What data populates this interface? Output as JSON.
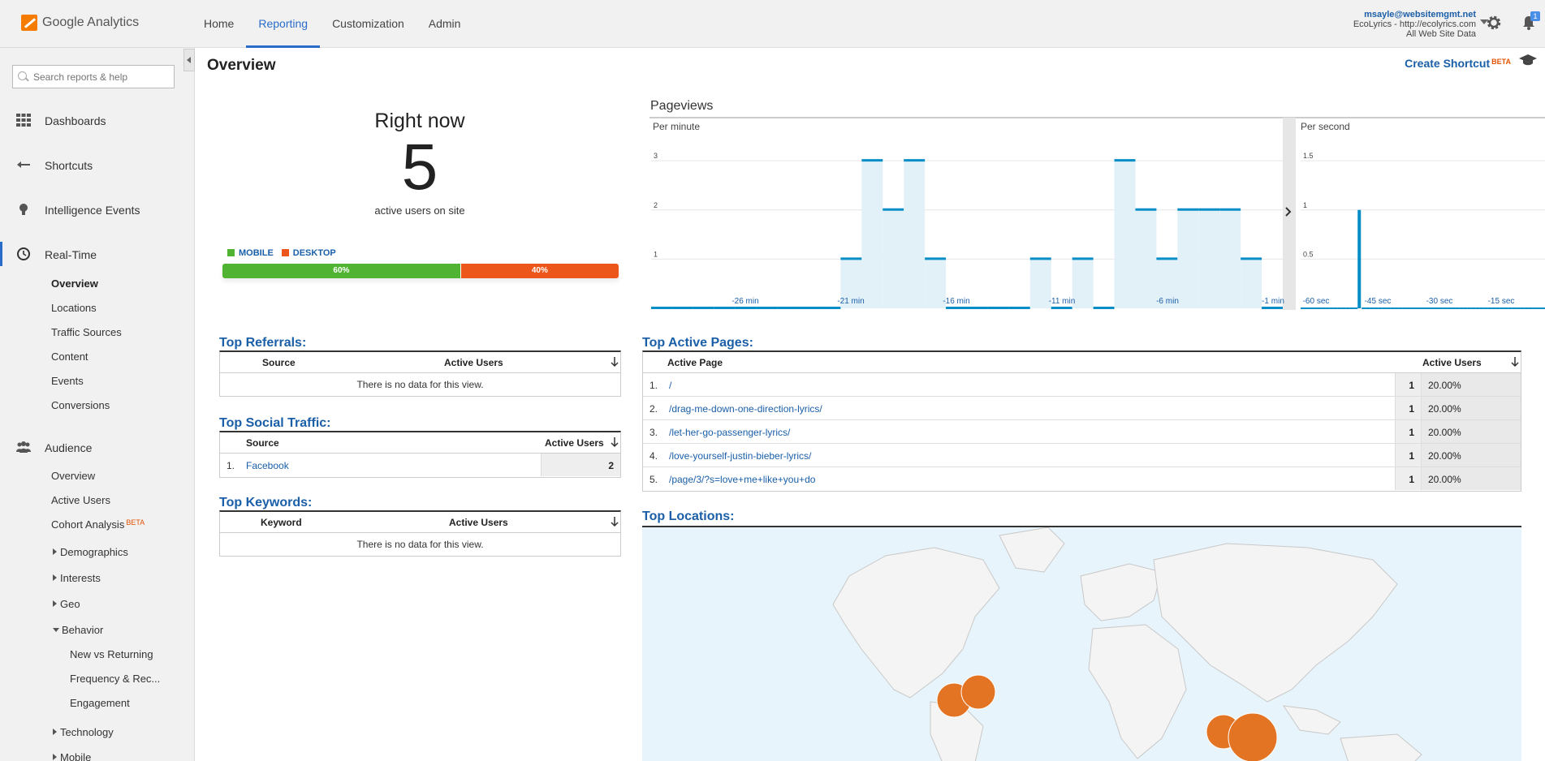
{
  "app": {
    "name": "Google Analytics"
  },
  "topnav": {
    "tabs": [
      {
        "label": "Home"
      },
      {
        "label": "Reporting"
      },
      {
        "label": "Customization"
      },
      {
        "label": "Admin"
      }
    ],
    "active": "Reporting"
  },
  "account": {
    "email": "msayle@websitemgmt.net",
    "property": "EcoLyrics - http://ecolyrics.com",
    "view": "All Web Site Data"
  },
  "notifications": {
    "count": "1"
  },
  "sidebar": {
    "search_placeholder": "Search reports & help",
    "sections": [
      {
        "label": "Dashboards"
      },
      {
        "label": "Shortcuts"
      },
      {
        "label": "Intelligence Events"
      },
      {
        "label": "Real-Time"
      },
      {
        "label": "Audience"
      }
    ],
    "realtime_items": [
      "Overview",
      "Locations",
      "Traffic Sources",
      "Content",
      "Events",
      "Conversions"
    ],
    "audience_items": [
      "Overview",
      "Active Users",
      "Cohort Analysis"
    ],
    "beta_label": "BETA",
    "audience_groups": [
      "Demographics",
      "Interests",
      "Geo",
      "Behavior"
    ],
    "behavior_items": [
      "New vs Returning",
      "Frequency & Rec...",
      "Engagement"
    ],
    "more_groups": [
      "Technology",
      "Mobile"
    ]
  },
  "main": {
    "title": "Overview",
    "create_shortcut": "Create Shortcut",
    "beta": "BETA",
    "right_now": {
      "heading": "Right now",
      "count": "5",
      "sub": "active users on site"
    },
    "devices": {
      "legend": [
        {
          "label": "MOBILE",
          "color": "#50b432"
        },
        {
          "label": "DESKTOP",
          "color": "#ed561b"
        }
      ],
      "mobile_pct": 60,
      "desktop_pct": 40,
      "mobile_label": "60%",
      "desktop_label": "40%"
    },
    "pageviews": {
      "title": "Pageviews",
      "per_minute": "Per minute",
      "per_second": "Per second"
    },
    "top_referrals": {
      "title": "Top Referrals:",
      "col_source": "Source",
      "col_users": "Active Users",
      "nodata": "There is no data for this view."
    },
    "top_social": {
      "title": "Top Social Traffic:",
      "col_source": "Source",
      "col_users": "Active Users",
      "rows": [
        {
          "num": "1.",
          "source": "Facebook",
          "users": "2"
        }
      ]
    },
    "top_keywords": {
      "title": "Top Keywords:",
      "col_keyword": "Keyword",
      "col_users": "Active Users",
      "nodata": "There is no data for this view."
    },
    "top_pages": {
      "title": "Top Active Pages:",
      "col_page": "Active Page",
      "col_users": "Active Users",
      "rows": [
        {
          "num": "1.",
          "page": "/",
          "users": "1",
          "pct": "20.00%"
        },
        {
          "num": "2.",
          "page": "/drag-me-down-one-direction-lyrics/",
          "users": "1",
          "pct": "20.00%"
        },
        {
          "num": "3.",
          "page": "/let-her-go-passenger-lyrics/",
          "users": "1",
          "pct": "20.00%"
        },
        {
          "num": "4.",
          "page": "/love-yourself-justin-bieber-lyrics/",
          "users": "1",
          "pct": "20.00%"
        },
        {
          "num": "5.",
          "page": "/page/3/?s=love+me+like+you+do",
          "users": "1",
          "pct": "20.00%"
        }
      ]
    },
    "top_locations": {
      "title": "Top Locations:"
    }
  },
  "chart_data": [
    {
      "type": "bar",
      "title": "Pageviews",
      "subtitle": "Per minute",
      "xlabel": "",
      "ylabel": "",
      "ylim": [
        0,
        3.2
      ],
      "yticks": [
        "1",
        "2",
        "3"
      ],
      "xticks": [
        "-26 min",
        "-21 min",
        "-16 min",
        "-11 min",
        "-6 min",
        "-1 min"
      ],
      "values": [
        0,
        0,
        0,
        0,
        0,
        0,
        0,
        0,
        0,
        1,
        3,
        2,
        3,
        1,
        0,
        0,
        0,
        0,
        1,
        0,
        1,
        0,
        3,
        2,
        1,
        2,
        2,
        2,
        1,
        0
      ],
      "color": "#058dc7"
    },
    {
      "type": "bar",
      "title": "Pageviews",
      "subtitle": "Per second",
      "ylim": [
        0,
        1.6
      ],
      "yticks": [
        "0.5",
        "1",
        "1.5"
      ],
      "xticks": [
        "-60 sec",
        "-45 sec",
        "-30 sec",
        "-15 sec"
      ],
      "values": [
        0,
        0,
        0,
        0,
        0,
        0,
        0,
        0,
        0,
        0,
        0,
        0,
        0,
        0,
        1,
        0,
        0,
        0,
        0,
        0,
        0,
        0,
        0,
        0,
        0,
        0,
        0,
        0,
        0,
        0,
        0,
        0,
        0,
        0,
        0,
        0,
        0,
        0,
        0,
        0,
        0,
        0,
        0,
        0,
        0,
        0,
        0,
        0,
        0,
        0,
        0,
        0,
        0,
        0,
        0,
        0,
        0,
        0,
        0,
        0
      ],
      "color": "#058dc7"
    }
  ]
}
